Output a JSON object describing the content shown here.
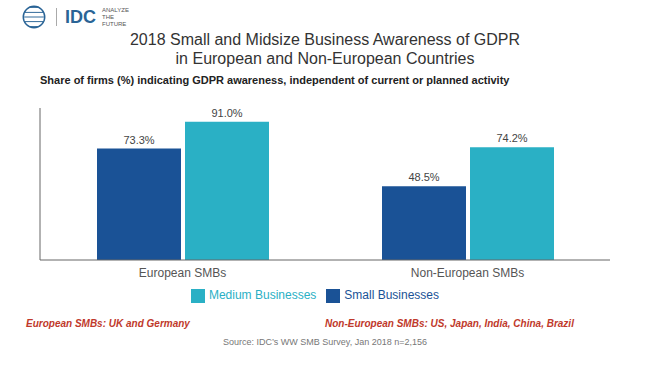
{
  "chart_data": {
    "type": "bar",
    "title": "2018 Small and Midsize Business Awareness of GDPR\nin European and Non-European Countries",
    "subtitle": "Share of firms (%) indicating GDPR awareness, independent of current or planned activity",
    "categories": [
      "European SMBs",
      "Non-European SMBs"
    ],
    "series": [
      {
        "name": "Small Businesses",
        "color": "#1a5296",
        "values": [
          73.3,
          48.5
        ],
        "value_labels": [
          "73.3%",
          "48.5%"
        ]
      },
      {
        "name": "Medium Businesses",
        "color": "#2ab0c5",
        "values": [
          91.0,
          74.2
        ],
        "value_labels": [
          "91.0%",
          "74.2%"
        ]
      }
    ],
    "ylim": [
      0,
      100
    ],
    "grid": false,
    "legend": "bottom",
    "data_labels": true,
    "tick_labels": "x",
    "annotations": [
      {
        "text": "IDC",
        "color": "#2a6496"
      },
      {
        "text": "ANALYZE"
      },
      {
        "text": "THE"
      },
      {
        "text": "FUTURE"
      },
      {
        "text": "European SMBs: UK and Germany",
        "color": "#c0392b"
      },
      {
        "text": "Non-European SMBs: US, Japan, India, China, Brazil",
        "color": "#c0392b"
      },
      {
        "text": "Source: IDC’s WW SMB Survey, Jan 2018 n=2,156"
      }
    ]
  }
}
